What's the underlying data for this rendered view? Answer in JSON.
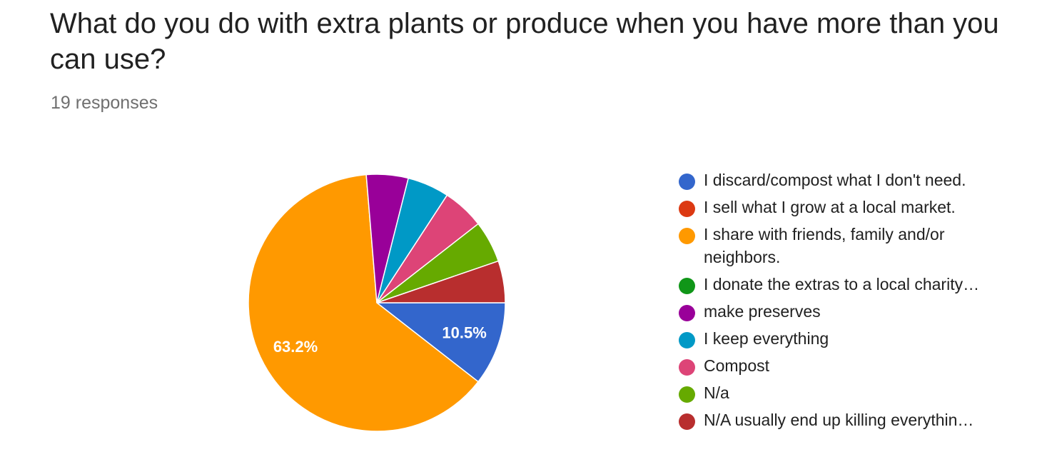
{
  "title": "What do you do with extra plants or produce when you have more than you can use?",
  "responses_label": "19 responses",
  "chart_data": {
    "type": "pie",
    "total_responses": 19,
    "slices": [
      {
        "label": "I discard/compost what I don't need.",
        "count": 2,
        "percent": 10.5,
        "percent_label": "10.5%",
        "color": "#3366cc"
      },
      {
        "label": "I sell what I grow at a local market.",
        "count": 0,
        "percent": 0,
        "color": "#dc3912"
      },
      {
        "label": "I share with friends, family and/or\nneighbors.",
        "count": 12,
        "percent": 63.2,
        "percent_label": "63.2%",
        "color": "#ff9900"
      },
      {
        "label": "I donate the extras to a local charity…",
        "count": 0,
        "percent": 0,
        "color": "#109618"
      },
      {
        "label": "make preserves",
        "count": 1,
        "percent": 5.3,
        "color": "#990099"
      },
      {
        "label": "I keep everything",
        "count": 1,
        "percent": 5.3,
        "color": "#0099c6"
      },
      {
        "label": "Compost",
        "count": 1,
        "percent": 5.3,
        "color": "#dd4477"
      },
      {
        "label": "N/a",
        "count": 1,
        "percent": 5.3,
        "color": "#66aa00"
      },
      {
        "label": "N/A usually end up killing everythin…",
        "count": 1,
        "percent": 5.3,
        "color": "#b82e2e"
      }
    ]
  }
}
